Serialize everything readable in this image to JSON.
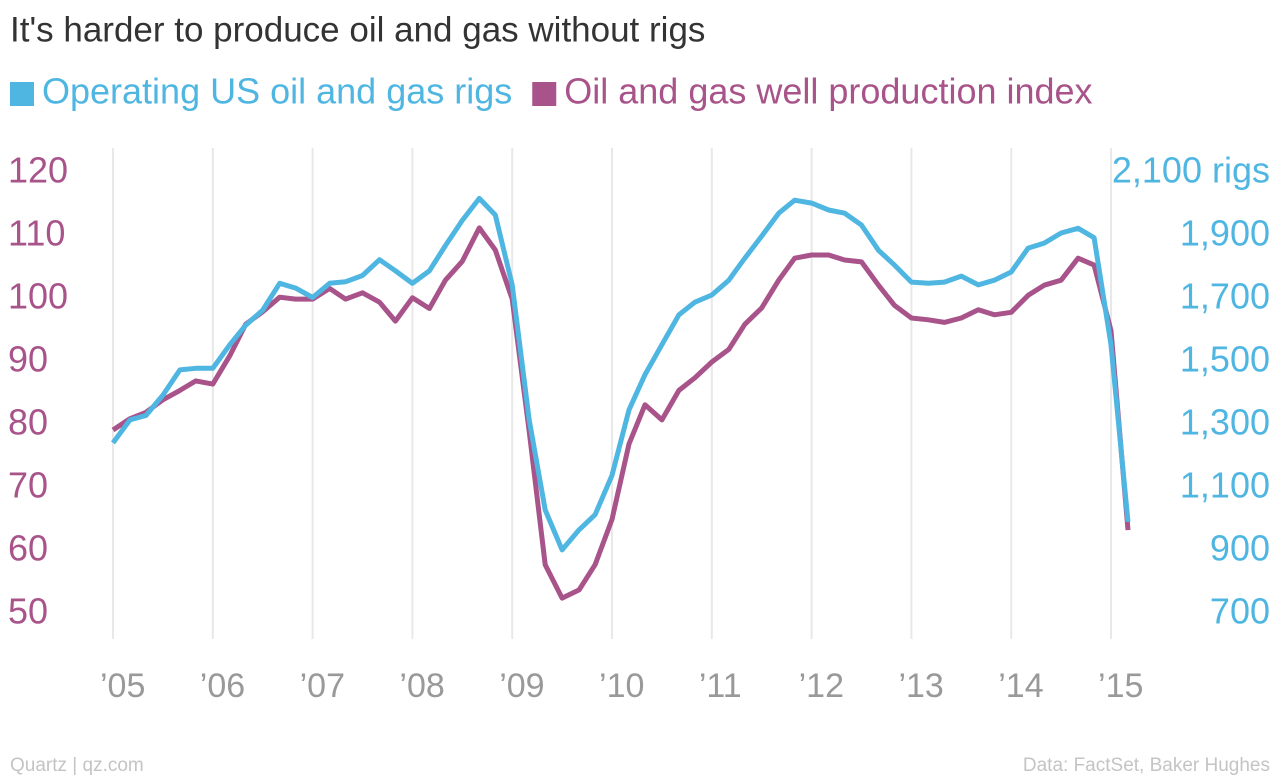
{
  "chart_data": {
    "type": "line",
    "title": "It's harder to produce oil and gas without rigs",
    "source_left": "Quartz | qz.com",
    "source_right": "Data: FactSet, Baker Hughes",
    "x": [
      2005.0,
      2005.17,
      2005.33,
      2005.5,
      2005.67,
      2005.83,
      2006.0,
      2006.17,
      2006.33,
      2006.5,
      2006.67,
      2006.83,
      2007.0,
      2007.17,
      2007.33,
      2007.5,
      2007.67,
      2007.83,
      2008.0,
      2008.17,
      2008.33,
      2008.5,
      2008.67,
      2008.83,
      2009.0,
      2009.17,
      2009.33,
      2009.5,
      2009.67,
      2009.83,
      2010.0,
      2010.17,
      2010.33,
      2010.5,
      2010.67,
      2010.83,
      2011.0,
      2011.17,
      2011.33,
      2011.5,
      2011.67,
      2011.83,
      2012.0,
      2012.17,
      2012.33,
      2012.5,
      2012.67,
      2012.83,
      2013.0,
      2013.17,
      2013.33,
      2013.5,
      2013.67,
      2013.83,
      2014.0,
      2014.17,
      2014.33,
      2014.5,
      2014.67,
      2014.83,
      2015.0,
      2015.17
    ],
    "series": [
      {
        "name": "Operating US oil and gas rigs",
        "color": "#4fb6e2",
        "axis": "y2",
        "values": [
          1243,
          1316,
          1330,
          1395,
          1475,
          1480,
          1480,
          1555,
          1617,
          1665,
          1750,
          1735,
          1705,
          1750,
          1755,
          1775,
          1825,
          1790,
          1750,
          1790,
          1870,
          1950,
          2020,
          1967,
          1745,
          1316,
          1030,
          903,
          967,
          1015,
          1140,
          1348,
          1460,
          1555,
          1650,
          1690,
          1713,
          1760,
          1830,
          1900,
          1973,
          2014,
          2005,
          1983,
          1973,
          1935,
          1855,
          1808,
          1754,
          1750,
          1754,
          1773,
          1745,
          1760,
          1786,
          1862,
          1878,
          1910,
          1925,
          1895,
          1555,
          992
        ]
      },
      {
        "name": "Oil and gas well production index",
        "color": "#a8538a",
        "values": [
          79.2,
          81,
          82,
          84,
          85.5,
          87,
          86.5,
          91,
          96,
          98,
          100.3,
          100,
          100,
          101.7,
          100,
          101,
          99.5,
          96.5,
          100.2,
          98.5,
          103,
          106,
          111.3,
          107.8,
          100,
          79,
          57.8,
          52.5,
          53.8,
          57.8,
          65,
          77,
          83.2,
          80.8,
          85.5,
          87.5,
          90,
          92,
          96,
          98.6,
          103,
          106.5,
          107,
          107,
          106.2,
          105.9,
          102.2,
          99,
          97,
          96.7,
          96.3,
          97,
          98.3,
          97.5,
          97.9,
          100.6,
          102.2,
          103,
          106.5,
          105.4,
          95,
          63.3
        ]
      }
    ],
    "xlim": [
      2005,
      2015.25
    ],
    "xticks": [
      {
        "value": 2005,
        "label": "’05"
      },
      {
        "value": 2006,
        "label": "’06"
      },
      {
        "value": 2007,
        "label": "’07"
      },
      {
        "value": 2008,
        "label": "’08"
      },
      {
        "value": 2009,
        "label": "’09"
      },
      {
        "value": 2010,
        "label": "’10"
      },
      {
        "value": 2011,
        "label": "’11"
      },
      {
        "value": 2012,
        "label": "’12"
      },
      {
        "value": 2013,
        "label": "’13"
      },
      {
        "value": 2014,
        "label": "’14"
      },
      {
        "value": 2015,
        "label": "’15"
      }
    ],
    "ylim": [
      46,
      124
    ],
    "yticks": [
      50,
      60,
      70,
      80,
      90,
      100,
      110,
      120
    ],
    "y2lim": [
      620,
      2180
    ],
    "y2ticks": [
      700,
      900,
      {
        "value": 1100,
        "label": "1,100"
      },
      {
        "value": 1300,
        "label": "1,300"
      },
      {
        "value": 1500,
        "label": "1,500"
      },
      {
        "value": 1700,
        "label": "1,700"
      },
      {
        "value": 1900,
        "label": "1,900"
      },
      {
        "value": 2100,
        "label": "2,100 rigs"
      }
    ],
    "grid": "x"
  }
}
